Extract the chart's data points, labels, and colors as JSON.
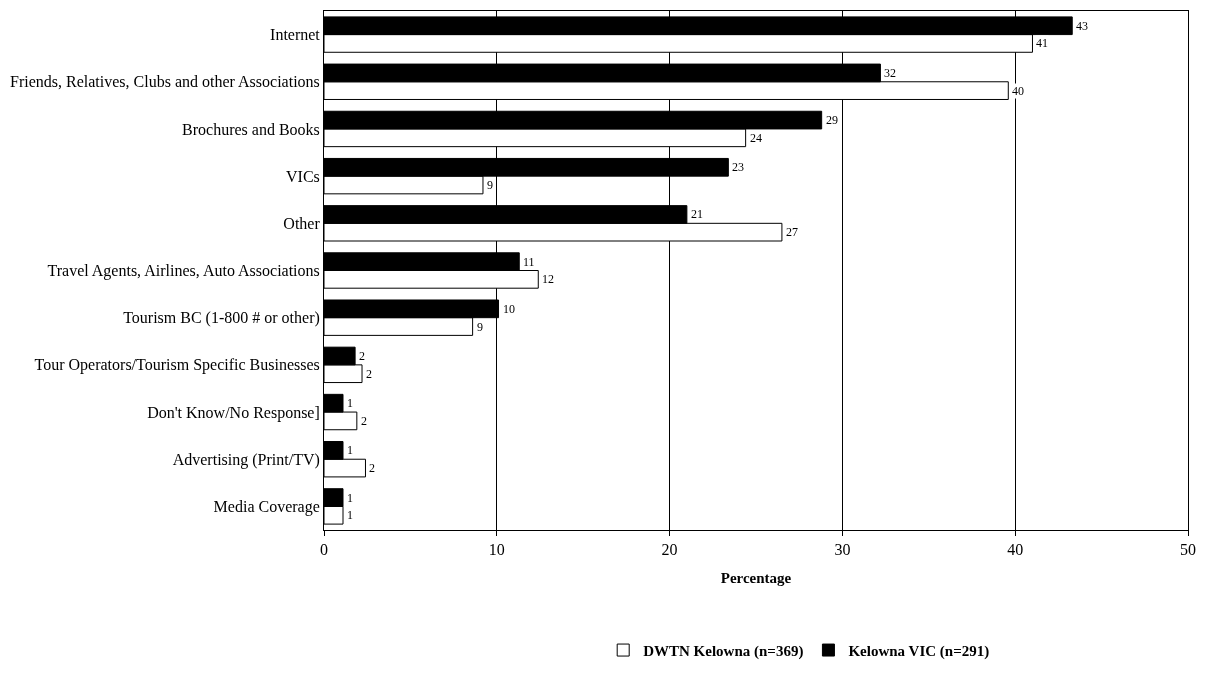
{
  "chart_data": {
    "type": "bar",
    "orientation": "horizontal",
    "xlabel": "Percentage",
    "categories": [
      "Internet",
      "Friends, Relatives, Clubs and other Associations",
      "Brochures and Books",
      "VICs",
      "Other",
      "Travel Agents, Airlines, Auto Associations",
      "Tourism BC (1-800 # or other)",
      "Tour Operators/Tourism Specific Businesses",
      "Don't Know/No Response]",
      "Advertising (Print/TV)",
      "Media Coverage"
    ],
    "series": [
      {
        "name": "DWTN Kelowna (n=369)",
        "color": "#ffffff",
        "values": [
          41,
          39.6,
          24.4,
          9.2,
          26.5,
          12.4,
          8.6,
          2.2,
          1.9,
          2.4,
          1.1
        ],
        "value_labels": [
          "41",
          "40",
          "24",
          "9",
          "27",
          "12",
          "9",
          "2",
          "2",
          "2",
          "1"
        ]
      },
      {
        "name": "Kelowna VIC (n=291)",
        "color": "#000000",
        "values": [
          43.3,
          32.2,
          28.8,
          23.4,
          21,
          11.3,
          10.1,
          1.8,
          1.1,
          1.1,
          1.1
        ],
        "value_labels": [
          "43",
          "32",
          "29",
          "23",
          "21",
          "11",
          "10",
          "2",
          "1",
          "1",
          "1"
        ]
      }
    ],
    "xlim": [
      0,
      50
    ],
    "xticks": [
      0,
      10,
      20,
      30,
      40,
      50
    ],
    "grid": "x",
    "legend": "bottom"
  }
}
